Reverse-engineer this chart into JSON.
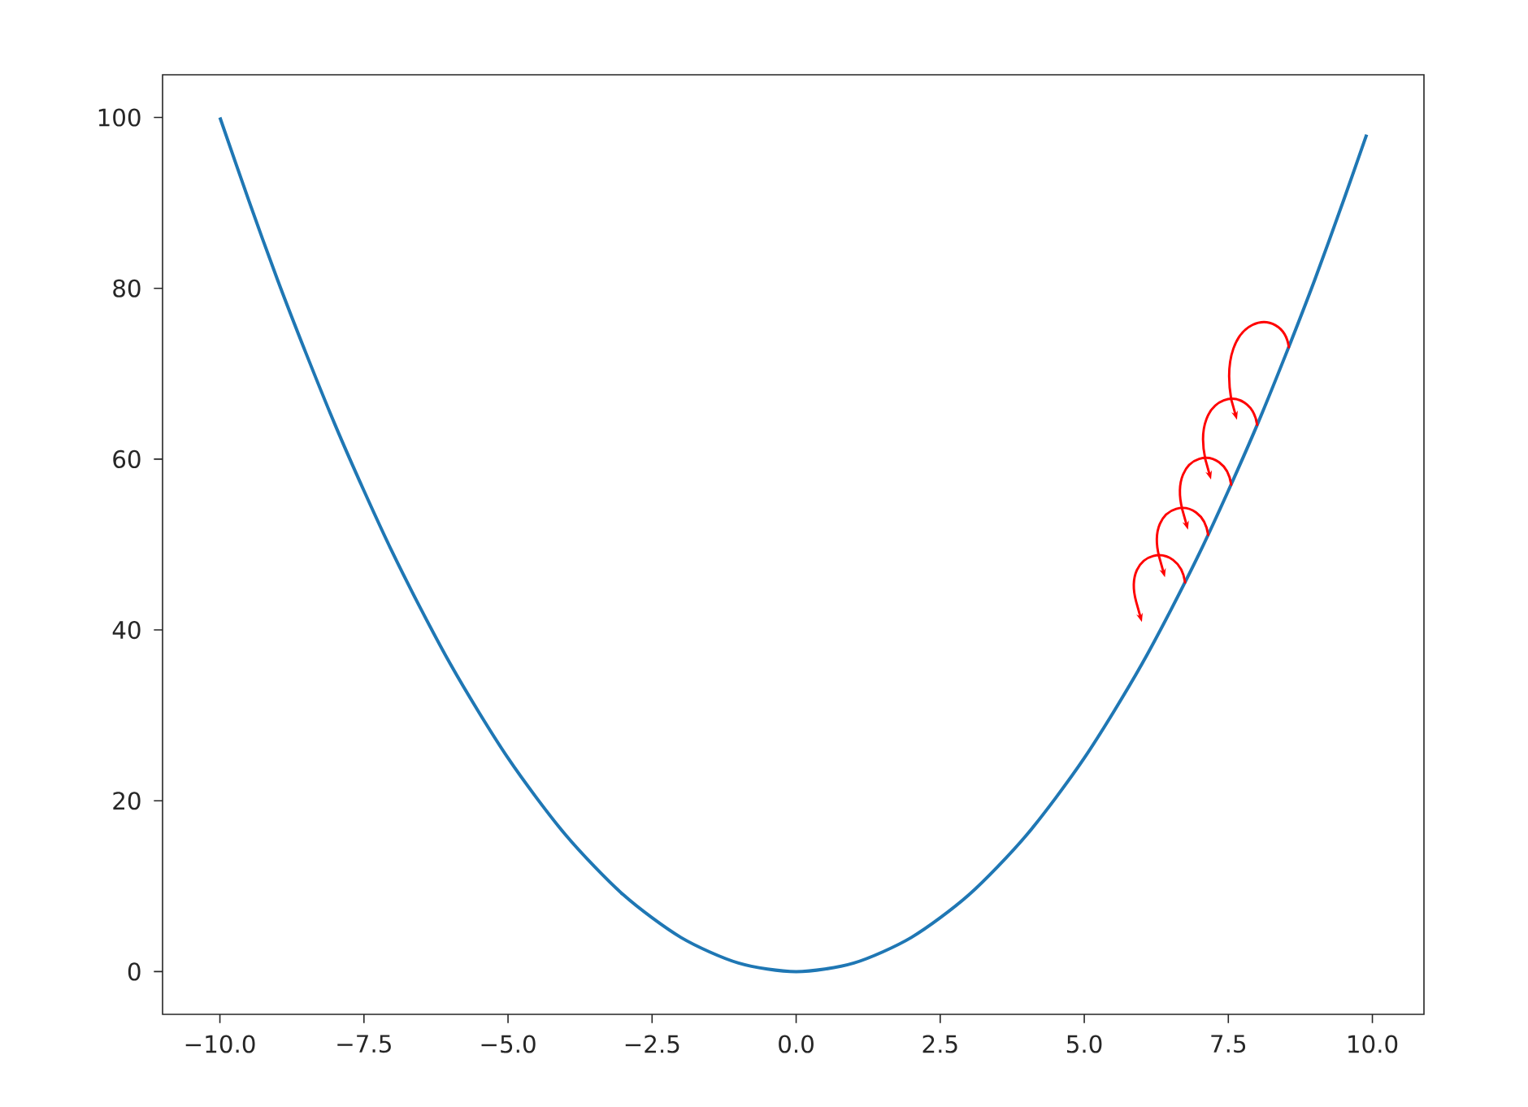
{
  "chart_data": {
    "type": "line",
    "color": "#1f77b4",
    "x": [
      -10,
      -9.5,
      -9,
      -8.5,
      -8,
      -7.5,
      -7,
      -6.5,
      -6,
      -5.5,
      -5,
      -4.5,
      -4,
      -3.5,
      -3,
      -2.5,
      -2,
      -1.5,
      -1,
      -0.5,
      0,
      0.5,
      1,
      1.5,
      2,
      2.5,
      3,
      3.5,
      4,
      4.5,
      5,
      5.5,
      6,
      6.5,
      7,
      7.5,
      8,
      8.5,
      9,
      9.5,
      9.9
    ],
    "values": [
      100,
      90.3,
      81,
      72.3,
      64,
      56.3,
      49,
      42.3,
      36,
      30.3,
      25,
      20.3,
      16,
      12.3,
      9,
      6.3,
      4,
      2.3,
      1,
      0.3,
      0,
      0.3,
      1,
      2.3,
      4,
      6.3,
      9,
      12.3,
      16,
      20.3,
      25,
      30.3,
      36,
      42.3,
      49,
      56.3,
      64,
      72.3,
      81,
      90.3,
      98
    ],
    "xlim": [
      -10.995,
      10.895
    ],
    "ylim": [
      -5,
      105
    ],
    "xticks": [
      {
        "value": -10,
        "label": "−10.0"
      },
      {
        "value": -7.5,
        "label": "−7.5"
      },
      {
        "value": -5,
        "label": "−5.0"
      },
      {
        "value": -2.5,
        "label": "−2.5"
      },
      {
        "value": 0,
        "label": "0.0"
      },
      {
        "value": 2.5,
        "label": "2.5"
      },
      {
        "value": 5,
        "label": "5.0"
      },
      {
        "value": 7.5,
        "label": "7.5"
      },
      {
        "value": 10,
        "label": "10.0"
      }
    ],
    "yticks": [
      0,
      20,
      40,
      60,
      80,
      100
    ]
  }
}
